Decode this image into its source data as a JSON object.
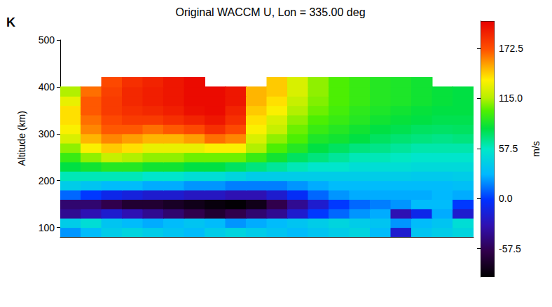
{
  "chart_data": {
    "type": "heatmap",
    "title": "Original WACCM U, Lon = 335.00 deg",
    "panel_label": "K",
    "y_label": "Altitude (km)",
    "tick_labels": "y",
    "grid": false,
    "categories": [
      null,
      null,
      null,
      null,
      null,
      null,
      null,
      null,
      null,
      null,
      null,
      null,
      null,
      null,
      null,
      null,
      null,
      null,
      null,
      null
    ],
    "y": [
      90,
      110,
      130,
      150,
      170,
      190,
      210,
      230,
      250,
      270,
      290,
      310,
      330,
      350,
      370,
      390,
      410
    ],
    "ylim": [
      80,
      500
    ],
    "yticks": [
      100,
      200,
      300,
      400,
      500
    ],
    "z": [
      [
        20,
        30,
        40,
        45,
        40,
        35,
        30,
        40,
        45,
        40,
        35,
        30,
        35,
        40,
        45,
        30,
        -20,
        35,
        40,
        45
      ],
      [
        40,
        50,
        35,
        30,
        25,
        30,
        35,
        30,
        20,
        25,
        30,
        35,
        40,
        45,
        40,
        35,
        20,
        30,
        35,
        50
      ],
      [
        -40,
        -30,
        -20,
        -30,
        -40,
        -50,
        -60,
        -70,
        -60,
        -50,
        -40,
        -20,
        0,
        10,
        20,
        25,
        -30,
        -10,
        25,
        -20
      ],
      [
        -50,
        -50,
        -60,
        -70,
        -70,
        -75,
        -80,
        -85,
        -88,
        -80,
        -60,
        -40,
        -20,
        0,
        10,
        15,
        20,
        30,
        30,
        0
      ],
      [
        10,
        0,
        -10,
        -15,
        -20,
        -20,
        -25,
        -25,
        -30,
        -30,
        -20,
        -5,
        10,
        20,
        25,
        25,
        25,
        25,
        28,
        25
      ],
      [
        40,
        35,
        30,
        30,
        25,
        25,
        20,
        20,
        15,
        15,
        15,
        20,
        25,
        30,
        30,
        30,
        30,
        30,
        30,
        32
      ],
      [
        60,
        60,
        60,
        60,
        55,
        55,
        50,
        50,
        45,
        40,
        40,
        40,
        40,
        40,
        40,
        40,
        40,
        38,
        38,
        40
      ],
      [
        80,
        85,
        90,
        90,
        85,
        85,
        80,
        80,
        75,
        70,
        65,
        60,
        55,
        55,
        50,
        50,
        50,
        48,
        48,
        48
      ],
      [
        95,
        110,
        120,
        115,
        110,
        110,
        105,
        105,
        105,
        95,
        85,
        75,
        70,
        65,
        60,
        60,
        58,
        55,
        55,
        55
      ],
      [
        110,
        135,
        145,
        140,
        130,
        130,
        130,
        135,
        135,
        115,
        100,
        90,
        80,
        75,
        70,
        68,
        65,
        62,
        62,
        62
      ],
      [
        125,
        150,
        160,
        155,
        150,
        150,
        155,
        165,
        160,
        125,
        110,
        100,
        88,
        85,
        80,
        75,
        72,
        70,
        68,
        70
      ],
      [
        135,
        160,
        170,
        170,
        165,
        170,
        175,
        185,
        175,
        135,
        120,
        105,
        95,
        90,
        85,
        80,
        78,
        75,
        74,
        75
      ],
      [
        140,
        165,
        175,
        180,
        180,
        185,
        190,
        195,
        185,
        140,
        125,
        110,
        100,
        95,
        90,
        85,
        82,
        80,
        78,
        78
      ],
      [
        140,
        170,
        180,
        185,
        188,
        192,
        198,
        200,
        190,
        145,
        135,
        115,
        105,
        98,
        92,
        88,
        85,
        82,
        80,
        80
      ],
      [
        130,
        170,
        180,
        188,
        192,
        195,
        200,
        200,
        195,
        150,
        140,
        120,
        108,
        100,
        95,
        90,
        88,
        85,
        82,
        80
      ],
      [
        115,
        165,
        178,
        188,
        192,
        195,
        200,
        200,
        195,
        150,
        145,
        125,
        110,
        100,
        95,
        90,
        88,
        85,
        82,
        80
      ],
      [
        null,
        null,
        175,
        185,
        190,
        195,
        200,
        null,
        null,
        null,
        145,
        125,
        110,
        100,
        95,
        90,
        88,
        85,
        null,
        null
      ]
    ],
    "colorbar": {
      "label": "m/s",
      "range": [
        -90,
        204
      ],
      "ticks": [
        172.5,
        {
          "value": 115,
          "label": "115.0"
        },
        57.5,
        {
          "value": 0,
          "label": "0.0"
        },
        -57.5
      ]
    }
  }
}
